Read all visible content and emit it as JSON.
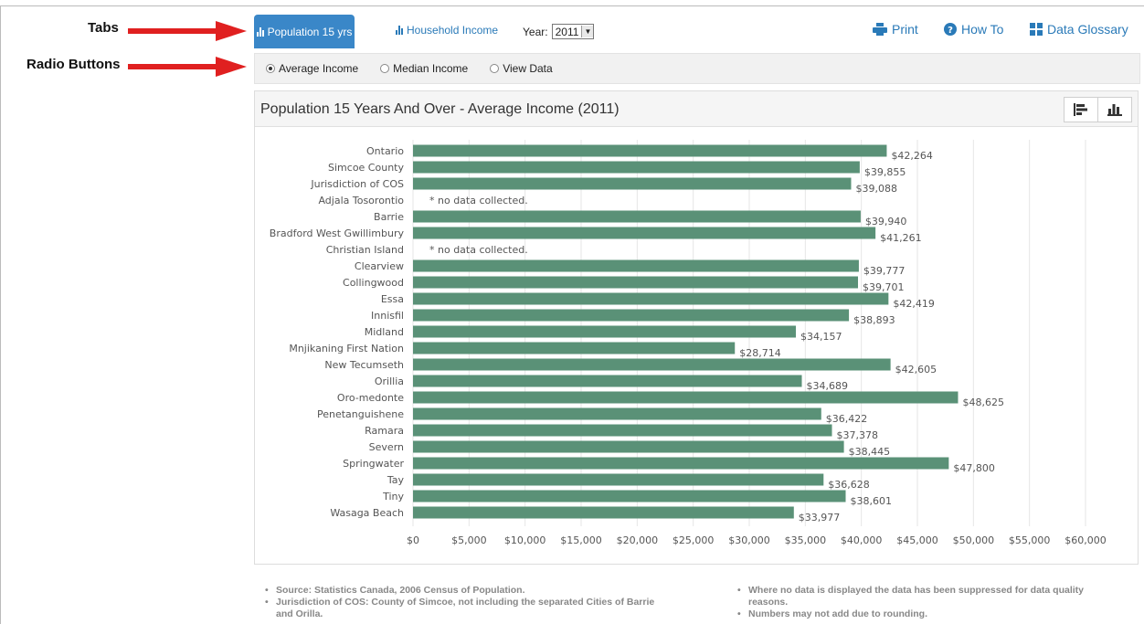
{
  "annotations": {
    "tabs_label": "Tabs",
    "radio_label": "Radio Buttons"
  },
  "tabs": {
    "active_label": "Population 15 yrs",
    "inactive_label": "Household Income"
  },
  "year": {
    "label": "Year:",
    "selected": "2011"
  },
  "toolbar": {
    "print_label": "Print",
    "howto_label": "How To",
    "glossary_label": "Data Glossary"
  },
  "radios": {
    "items": [
      {
        "label": "Average Income",
        "checked": true
      },
      {
        "label": "Median Income",
        "checked": false
      },
      {
        "label": "View Data",
        "checked": false
      }
    ]
  },
  "panel": {
    "title": "Population 15 Years And Over - Average Income (2011)"
  },
  "chart_data": {
    "type": "bar",
    "orientation": "horizontal",
    "bar_color": "#5a9177",
    "no_data_label": "* no data collected.",
    "categories": [
      "Ontario",
      "Simcoe County",
      "Jurisdiction of COS",
      "Adjala Tosorontio",
      "Barrie",
      "Bradford West Gwillimbury",
      "Christian Island",
      "Clearview",
      "Collingwood",
      "Essa",
      "Innisfil",
      "Midland",
      "Mnjikaning First Nation",
      "New Tecumseth",
      "Orillia",
      "Oro-medonte",
      "Penetanguishene",
      "Ramara",
      "Severn",
      "Springwater",
      "Tay",
      "Tiny",
      "Wasaga Beach"
    ],
    "values": [
      42264,
      39855,
      39088,
      null,
      39940,
      41261,
      null,
      39777,
      39701,
      42419,
      38893,
      34157,
      28714,
      42605,
      34689,
      48625,
      36422,
      37378,
      38445,
      47800,
      36628,
      38601,
      33977
    ],
    "value_labels": [
      "$42,264",
      "$39,855",
      "$39,088",
      "",
      "$39,940",
      "$41,261",
      "",
      "$39,777",
      "$39,701",
      "$42,419",
      "$38,893",
      "$34,157",
      "$28,714",
      "$42,605",
      "$34,689",
      "$48,625",
      "$36,422",
      "$37,378",
      "$38,445",
      "$47,800",
      "$36,628",
      "$38,601",
      "$33,977"
    ],
    "xlim": [
      0,
      60000
    ],
    "x_ticks": [
      "$0",
      "$5,000",
      "$10,000",
      "$15,000",
      "$20,000",
      "$25,000",
      "$30,000",
      "$35,000",
      "$40,000",
      "$45,000",
      "$50,000",
      "$55,000",
      "$60,000"
    ],
    "grid": true
  },
  "footnotes": {
    "left": [
      "Source: Statistics Canada, 2006 Census of Population.",
      "Jurisdiction of COS: County of Simcoe, not including the separated Cities of Barrie and Orilla."
    ],
    "right": [
      "Where no data is displayed the data has been suppressed for data quality reasons.",
      "Numbers may not add due to rounding."
    ]
  }
}
